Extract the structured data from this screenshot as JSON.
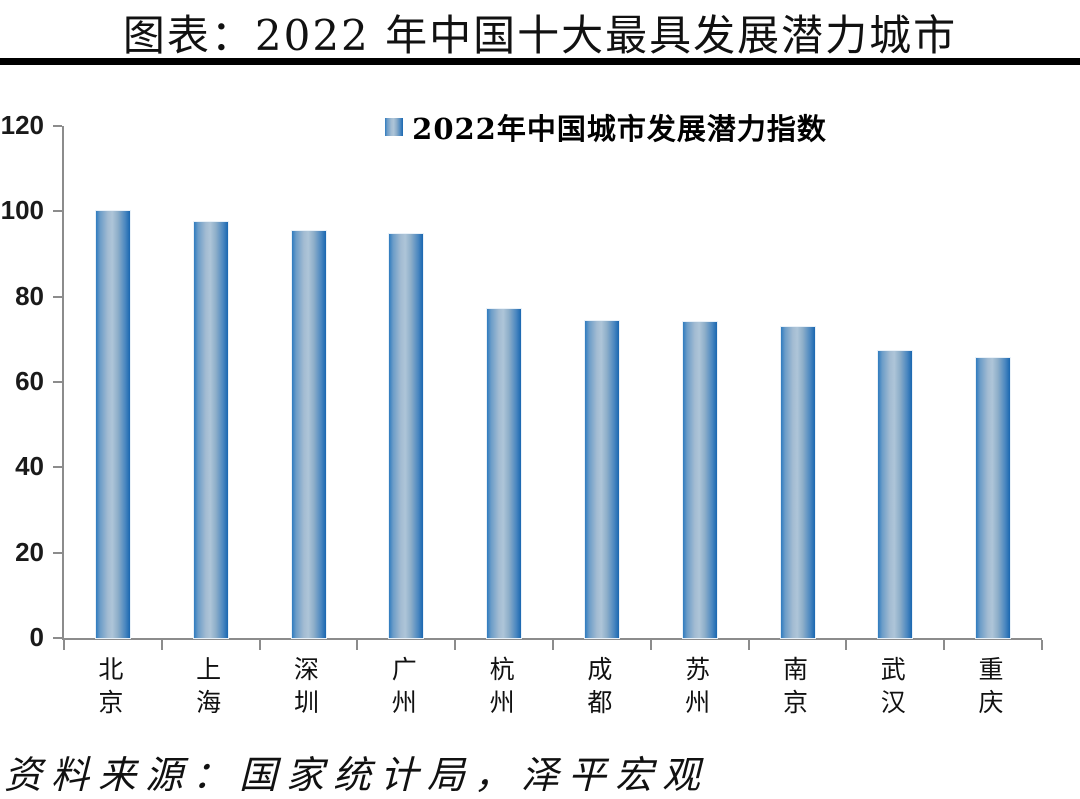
{
  "page": {
    "title": "图表：2022 年中国十大最具发展潜力城市",
    "source": "资料来源：国家统计局，泽平宏观"
  },
  "chart_data": {
    "type": "bar",
    "title": "图表：2022 年中国十大最具发展潜力城市",
    "legend": [
      "2022年中国城市发展潜力指数"
    ],
    "legend_position": "top-center",
    "categories": [
      "北京",
      "上海",
      "深圳",
      "广州",
      "杭州",
      "成都",
      "苏州",
      "南京",
      "武汉",
      "重庆"
    ],
    "values": [
      100,
      97.5,
      95.3,
      94.8,
      77.2,
      74.4,
      74.0,
      73.0,
      67.2,
      65.7
    ],
    "xlabel": "",
    "ylabel": "",
    "ylim": [
      0,
      120
    ],
    "yticks": [
      0,
      20,
      40,
      60,
      80,
      100,
      120
    ],
    "grid": false,
    "colors": {
      "bar_edge": "#1a67b0",
      "bar_mid": "#aec5d8",
      "axis": "#8c8c8c",
      "text": "#111111",
      "divider": "#000000"
    }
  }
}
